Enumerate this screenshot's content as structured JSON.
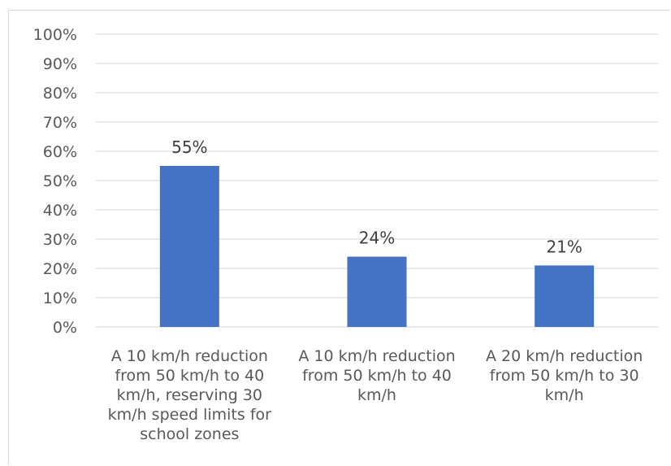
{
  "chart_data": {
    "type": "bar",
    "categories": [
      [
        "A 10 km/h reduction",
        "from 50 km/h to 40",
        "km/h, reserving 30",
        "km/h speed limits for",
        "school zones"
      ],
      [
        "A 10 km/h reduction",
        "from 50 km/h to 40",
        "km/h"
      ],
      [
        "A 20 km/h reduction",
        "from 50 km/h to 30",
        "km/h"
      ]
    ],
    "values": [
      55,
      24,
      21
    ],
    "data_labels": [
      "55%",
      "24%",
      "21%"
    ],
    "ylim": [
      0,
      100
    ],
    "yticks": [
      "0%",
      "10%",
      "20%",
      "30%",
      "40%",
      "50%",
      "60%",
      "70%",
      "80%",
      "90%",
      "100%"
    ],
    "grid": true,
    "bar_color": "#4472C4",
    "title": "",
    "xlabel": "",
    "ylabel": ""
  }
}
